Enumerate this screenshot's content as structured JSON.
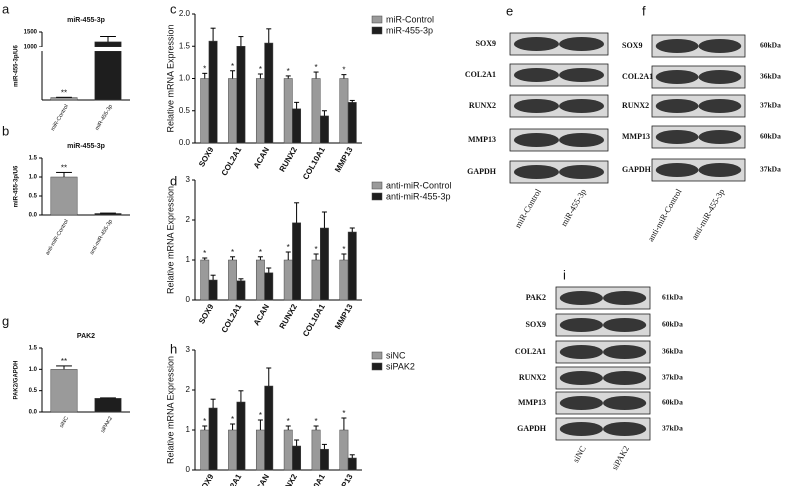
{
  "chart_data": [
    {
      "type": "bar",
      "panel": "a",
      "title": "miR-455-3p",
      "ylabel": "miR-455-3p/U6",
      "categories": [
        "miR-Control",
        "miR-455-3p"
      ],
      "series": [
        {
          "name": null,
          "color": "#9a9a9a",
          "values": [
            1,
            1170
          ],
          "errors": [
            0.1,
            180
          ]
        }
      ],
      "bar_colors": [
        "#9a9a9a",
        "#1e1e1e"
      ],
      "stars": [
        "**",
        null
      ],
      "ylim": [
        0,
        1500
      ],
      "ybreak": [
        20,
        1000
      ],
      "yticks": [
        1000,
        1500
      ]
    },
    {
      "type": "bar",
      "panel": "b",
      "title": "miR-455-3p",
      "ylabel": "miR-455-3p/U6",
      "categories": [
        "anti-miR-Control",
        "anti-miR-455-3p"
      ],
      "series": [
        {
          "name": null,
          "color": "#9a9a9a",
          "values": [
            1.0,
            0.04
          ],
          "errors": [
            0.12,
            0.01
          ]
        }
      ],
      "bar_colors": [
        "#9a9a9a",
        "#1e1e1e"
      ],
      "stars": [
        "**",
        null
      ],
      "ylim": [
        0,
        1.5
      ],
      "yticks": [
        {
          "value": 0,
          "label": "0.0"
        },
        {
          "value": 0.5,
          "label": "0.5"
        },
        {
          "value": 1,
          "label": "1.0"
        },
        {
          "value": 1.5,
          "label": "1.5"
        }
      ]
    },
    {
      "type": "bar",
      "panel": "g",
      "title": "PAK2",
      "ylabel": "PAK2/GAPDH",
      "categories": [
        "siNC",
        "siPAK2"
      ],
      "series": [
        {
          "name": null,
          "color": "#9a9a9a",
          "values": [
            1.0,
            0.32
          ],
          "errors": [
            0.08,
            0.01
          ]
        }
      ],
      "bar_colors": [
        "#9a9a9a",
        "#1e1e1e"
      ],
      "stars": [
        "**",
        null
      ],
      "ylim": [
        0,
        1.5
      ],
      "yticks": [
        {
          "value": 0,
          "label": "0.0"
        },
        {
          "value": 0.5,
          "label": "0.5"
        },
        {
          "value": 1,
          "label": "1.0"
        },
        {
          "value": 1.5,
          "label": "1.5"
        }
      ]
    },
    {
      "type": "bar",
      "panel": "c",
      "ylabel": "Relative mRNA Expression",
      "legend": "right",
      "categories": [
        "SOX9",
        "COL2A1",
        "ACAN",
        "RUNX2",
        "COL10A1",
        "MMP13"
      ],
      "series": [
        {
          "name": "miR-Control",
          "color": "#9a9a9a",
          "values": [
            1,
            1,
            1,
            1,
            1,
            1
          ],
          "errors": [
            0.08,
            0.12,
            0.07,
            0.04,
            0.1,
            0.06
          ]
        },
        {
          "name": "miR-455-3p",
          "color": "#1e1e1e",
          "values": [
            1.58,
            1.5,
            1.55,
            0.53,
            0.42,
            0.63
          ],
          "errors": [
            0.2,
            0.15,
            0.22,
            0.1,
            0.08,
            0.03
          ]
        }
      ],
      "stars": [
        "*",
        "*",
        "*",
        "*",
        "*",
        "*"
      ],
      "ylim": [
        0,
        2
      ],
      "yticks": [
        {
          "value": 0,
          "label": "0.0"
        },
        {
          "value": 0.5,
          "label": "0.5"
        },
        {
          "value": 1,
          "label": "1.0"
        },
        {
          "value": 1.5,
          "label": "1.5"
        },
        {
          "value": 2,
          "label": "2.0"
        }
      ]
    },
    {
      "type": "bar",
      "panel": "d",
      "ylabel": "Relative mRNA Expression",
      "legend": "right",
      "categories": [
        "SOX9",
        "COL2A1",
        "ACAN",
        "RUNX2",
        "COL10A1",
        "MMP13"
      ],
      "series": [
        {
          "name": "anti-miR-Control",
          "color": "#9a9a9a",
          "values": [
            1,
            1,
            1,
            1,
            1,
            1
          ],
          "errors": [
            0.05,
            0.08,
            0.08,
            0.2,
            0.15,
            0.15
          ]
        },
        {
          "name": "anti-miR-455-3p",
          "color": "#1e1e1e",
          "values": [
            0.5,
            0.48,
            0.68,
            1.93,
            1.8,
            1.7
          ],
          "errors": [
            0.12,
            0.05,
            0.12,
            0.5,
            0.4,
            0.1
          ]
        }
      ],
      "stars": [
        "*",
        "*",
        "*",
        "*",
        "*",
        "*"
      ],
      "ylim": [
        0,
        3
      ],
      "yticks": [
        0,
        1,
        2,
        3
      ]
    },
    {
      "type": "bar",
      "panel": "h",
      "ylabel": "Relative mRNA Expression",
      "legend": "right",
      "categories": [
        "SOX9",
        "COL2A1",
        "ACAN",
        "RUNX2",
        "COL10A1",
        "MMP13"
      ],
      "series": [
        {
          "name": "siNC",
          "color": "#9a9a9a",
          "values": [
            1,
            1,
            1,
            1,
            1,
            1
          ],
          "errors": [
            0.1,
            0.15,
            0.25,
            0.1,
            0.1,
            0.3
          ]
        },
        {
          "name": "siPAK2",
          "color": "#1e1e1e",
          "values": [
            1.55,
            1.7,
            2.1,
            0.6,
            0.52,
            0.3
          ],
          "errors": [
            0.22,
            0.28,
            0.45,
            0.15,
            0.12,
            0.08
          ]
        }
      ],
      "stars": [
        "*",
        "*",
        "*",
        "*",
        "*",
        "*"
      ],
      "ylim": [
        0,
        3
      ],
      "yticks": [
        0,
        1,
        2,
        3
      ]
    }
  ],
  "blots": [
    {
      "panel": "e",
      "rows": [
        "SOX9",
        "COL2A1",
        "RUNX2",
        "MMP13",
        "GAPDH"
      ],
      "sizes": [],
      "lanes": [
        "miR-Control",
        "miR-455-3p"
      ]
    },
    {
      "panel": "f",
      "rows": [
        "SOX9",
        "COL2A1",
        "RUNX2",
        "MMP13",
        "GAPDH"
      ],
      "sizes": [
        "60kDa",
        "36kDa",
        "37kDa",
        "60kDa",
        "37kDa"
      ],
      "lanes": [
        "anti-miR-Control",
        "anti-miR-455-3p"
      ]
    },
    {
      "panel": "i",
      "rows": [
        "PAK2",
        "SOX9",
        "COL2A1",
        "RUNX2",
        "MMP13",
        "GAPDH"
      ],
      "sizes": [
        "61kDa",
        "60kDa",
        "36kDa",
        "37kDa",
        "60kDa",
        "37kDa"
      ],
      "lanes": [
        "siNC",
        "siPAK2"
      ]
    }
  ]
}
